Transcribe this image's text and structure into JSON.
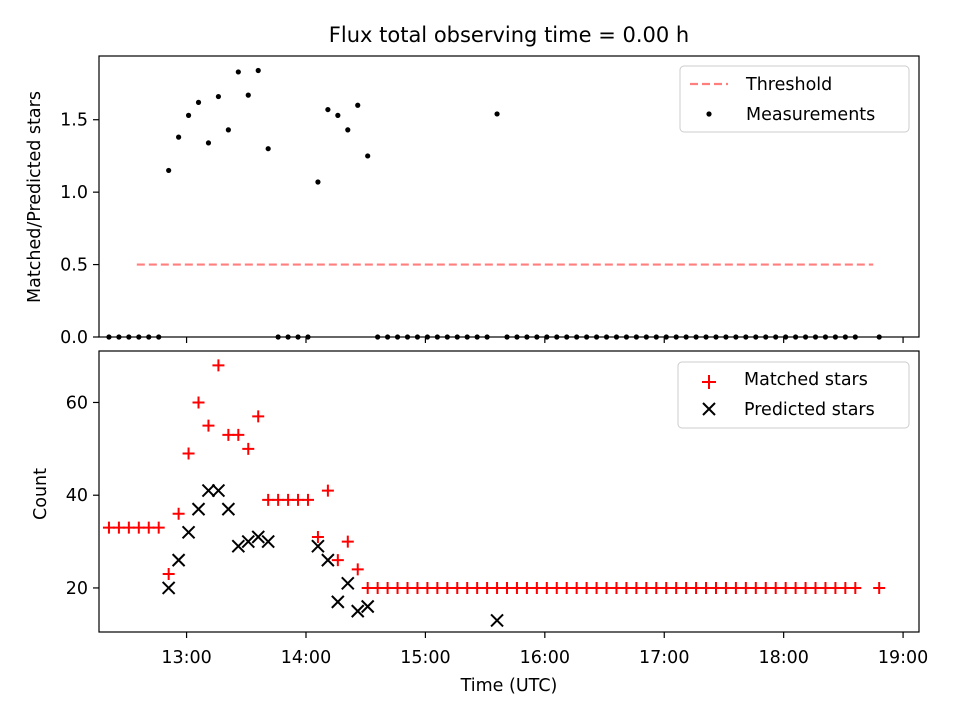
{
  "chart_data": [
    {
      "type": "scatter",
      "title": "Flux total observing time = 0.00 h",
      "xlabel": "",
      "ylabel": "Matched/Predicted stars",
      "xlim": [
        "12:16",
        "19:08"
      ],
      "ylim": [
        0,
        1.94
      ],
      "yticks": [
        {
          "value": 0.0,
          "label": "0.0"
        },
        {
          "value": 0.5,
          "label": "0.5"
        },
        {
          "value": 1.0,
          "label": "1.0"
        },
        {
          "value": 1.5,
          "label": "1.5"
        }
      ],
      "xticks": [
        "13:00",
        "14:00",
        "15:00",
        "16:00",
        "17:00",
        "18:00",
        "19:00"
      ],
      "grid": false,
      "legend": {
        "placement": "top-right",
        "entries": [
          "Threshold",
          "Measurements"
        ]
      },
      "series": [
        {
          "name": "Threshold",
          "style": "dashed-line",
          "color": "#ff7f7f",
          "points": [
            [
              "12:35",
              0.5
            ],
            [
              "18:45",
              0.5
            ]
          ]
        },
        {
          "name": "Measurements",
          "style": "dot",
          "color": "#000000",
          "points": [
            [
              "12:21",
              0
            ],
            [
              "12:26",
              0
            ],
            [
              "12:31",
              0
            ],
            [
              "12:36",
              0
            ],
            [
              "12:41",
              0
            ],
            [
              "12:46",
              0
            ],
            [
              "12:51",
              1.15
            ],
            [
              "12:56",
              1.38
            ],
            [
              "13:01",
              1.53
            ],
            [
              "13:06",
              1.62
            ],
            [
              "13:11",
              1.34
            ],
            [
              "13:16",
              1.66
            ],
            [
              "13:21",
              1.43
            ],
            [
              "13:26",
              1.83
            ],
            [
              "13:31",
              1.67
            ],
            [
              "13:36",
              1.84
            ],
            [
              "13:41",
              1.3
            ],
            [
              "13:46",
              0
            ],
            [
              "13:51",
              0
            ],
            [
              "13:56",
              0
            ],
            [
              "14:01",
              0
            ],
            [
              "14:06",
              1.07
            ],
            [
              "14:11",
              1.57
            ],
            [
              "14:16",
              1.53
            ],
            [
              "14:21",
              1.43
            ],
            [
              "14:26",
              1.6
            ],
            [
              "14:31",
              1.25
            ],
            [
              "14:36",
              0
            ],
            [
              "14:41",
              0
            ],
            [
              "14:46",
              0
            ],
            [
              "14:51",
              0
            ],
            [
              "14:56",
              0
            ],
            [
              "15:01",
              0
            ],
            [
              "15:06",
              0
            ],
            [
              "15:11",
              0
            ],
            [
              "15:16",
              0
            ],
            [
              "15:21",
              0
            ],
            [
              "15:26",
              0
            ],
            [
              "15:31",
              0
            ],
            [
              "15:36",
              1.54
            ],
            [
              "15:41",
              0
            ],
            [
              "15:46",
              0
            ],
            [
              "15:51",
              0
            ],
            [
              "15:56",
              0
            ],
            [
              "16:01",
              0
            ],
            [
              "16:06",
              0
            ],
            [
              "16:11",
              0
            ],
            [
              "16:16",
              0
            ],
            [
              "16:21",
              0
            ],
            [
              "16:26",
              0
            ],
            [
              "16:31",
              0
            ],
            [
              "16:36",
              0
            ],
            [
              "16:41",
              0
            ],
            [
              "16:46",
              0
            ],
            [
              "16:51",
              0
            ],
            [
              "16:56",
              0
            ],
            [
              "17:01",
              0
            ],
            [
              "17:06",
              0
            ],
            [
              "17:11",
              0
            ],
            [
              "17:16",
              0
            ],
            [
              "17:21",
              0
            ],
            [
              "17:26",
              0
            ],
            [
              "17:31",
              0
            ],
            [
              "17:36",
              0
            ],
            [
              "17:41",
              0
            ],
            [
              "17:46",
              0
            ],
            [
              "17:51",
              0
            ],
            [
              "17:56",
              0
            ],
            [
              "18:01",
              0
            ],
            [
              "18:06",
              0
            ],
            [
              "18:11",
              0
            ],
            [
              "18:16",
              0
            ],
            [
              "18:21",
              0
            ],
            [
              "18:26",
              0
            ],
            [
              "18:31",
              0
            ],
            [
              "18:36",
              0
            ],
            [
              "18:48",
              0
            ]
          ]
        }
      ]
    },
    {
      "type": "scatter",
      "title": "",
      "xlabel": "Time (UTC)",
      "ylabel": "Count",
      "xlim": [
        "12:16",
        "19:08"
      ],
      "ylim": [
        10.5,
        71.1
      ],
      "yticks": [
        {
          "value": 20,
          "label": "20"
        },
        {
          "value": 40,
          "label": "40"
        },
        {
          "value": 60,
          "label": "60"
        }
      ],
      "xticks": [
        "13:00",
        "14:00",
        "15:00",
        "16:00",
        "17:00",
        "18:00",
        "19:00"
      ],
      "grid": false,
      "legend": {
        "placement": "top-right",
        "entries": [
          "Matched stars",
          "Predicted stars"
        ]
      },
      "series": [
        {
          "name": "Matched stars",
          "marker": "plus",
          "color": "#ff0000",
          "points": [
            [
              "12:21",
              33
            ],
            [
              "12:26",
              33
            ],
            [
              "12:31",
              33
            ],
            [
              "12:36",
              33
            ],
            [
              "12:41",
              33
            ],
            [
              "12:46",
              33
            ],
            [
              "12:51",
              23
            ],
            [
              "12:56",
              36
            ],
            [
              "13:01",
              49
            ],
            [
              "13:06",
              60
            ],
            [
              "13:11",
              55
            ],
            [
              "13:16",
              68
            ],
            [
              "13:21",
              53
            ],
            [
              "13:26",
              53
            ],
            [
              "13:31",
              50
            ],
            [
              "13:36",
              57
            ],
            [
              "13:41",
              39
            ],
            [
              "13:46",
              39
            ],
            [
              "13:51",
              39
            ],
            [
              "13:56",
              39
            ],
            [
              "14:01",
              39
            ],
            [
              "14:06",
              31
            ],
            [
              "14:11",
              41
            ],
            [
              "14:16",
              26
            ],
            [
              "14:21",
              30
            ],
            [
              "14:26",
              24
            ],
            [
              "14:31",
              20
            ],
            [
              "14:36",
              20
            ],
            [
              "14:41",
              20
            ],
            [
              "14:46",
              20
            ],
            [
              "14:51",
              20
            ],
            [
              "14:56",
              20
            ],
            [
              "15:01",
              20
            ],
            [
              "15:06",
              20
            ],
            [
              "15:11",
              20
            ],
            [
              "15:16",
              20
            ],
            [
              "15:21",
              20
            ],
            [
              "15:26",
              20
            ],
            [
              "15:31",
              20
            ],
            [
              "15:36",
              20
            ],
            [
              "15:41",
              20
            ],
            [
              "15:46",
              20
            ],
            [
              "15:51",
              20
            ],
            [
              "15:56",
              20
            ],
            [
              "16:01",
              20
            ],
            [
              "16:06",
              20
            ],
            [
              "16:11",
              20
            ],
            [
              "16:16",
              20
            ],
            [
              "16:21",
              20
            ],
            [
              "16:26",
              20
            ],
            [
              "16:31",
              20
            ],
            [
              "16:36",
              20
            ],
            [
              "16:41",
              20
            ],
            [
              "16:46",
              20
            ],
            [
              "16:51",
              20
            ],
            [
              "16:56",
              20
            ],
            [
              "17:01",
              20
            ],
            [
              "17:06",
              20
            ],
            [
              "17:11",
              20
            ],
            [
              "17:16",
              20
            ],
            [
              "17:21",
              20
            ],
            [
              "17:26",
              20
            ],
            [
              "17:31",
              20
            ],
            [
              "17:36",
              20
            ],
            [
              "17:41",
              20
            ],
            [
              "17:46",
              20
            ],
            [
              "17:51",
              20
            ],
            [
              "17:56",
              20
            ],
            [
              "18:01",
              20
            ],
            [
              "18:06",
              20
            ],
            [
              "18:11",
              20
            ],
            [
              "18:16",
              20
            ],
            [
              "18:21",
              20
            ],
            [
              "18:26",
              20
            ],
            [
              "18:31",
              20
            ],
            [
              "18:36",
              20
            ],
            [
              "18:48",
              20
            ]
          ]
        },
        {
          "name": "Predicted stars",
          "marker": "x",
          "color": "#000000",
          "points": [
            [
              "12:51",
              20
            ],
            [
              "12:56",
              26
            ],
            [
              "13:01",
              32
            ],
            [
              "13:06",
              37
            ],
            [
              "13:11",
              41
            ],
            [
              "13:16",
              41
            ],
            [
              "13:21",
              37
            ],
            [
              "13:26",
              29
            ],
            [
              "13:31",
              30
            ],
            [
              "13:36",
              31
            ],
            [
              "13:41",
              30
            ],
            [
              "14:06",
              29
            ],
            [
              "14:11",
              26
            ],
            [
              "14:16",
              17
            ],
            [
              "14:21",
              21
            ],
            [
              "14:26",
              15
            ],
            [
              "14:31",
              16
            ],
            [
              "15:36",
              13
            ]
          ]
        }
      ]
    }
  ]
}
